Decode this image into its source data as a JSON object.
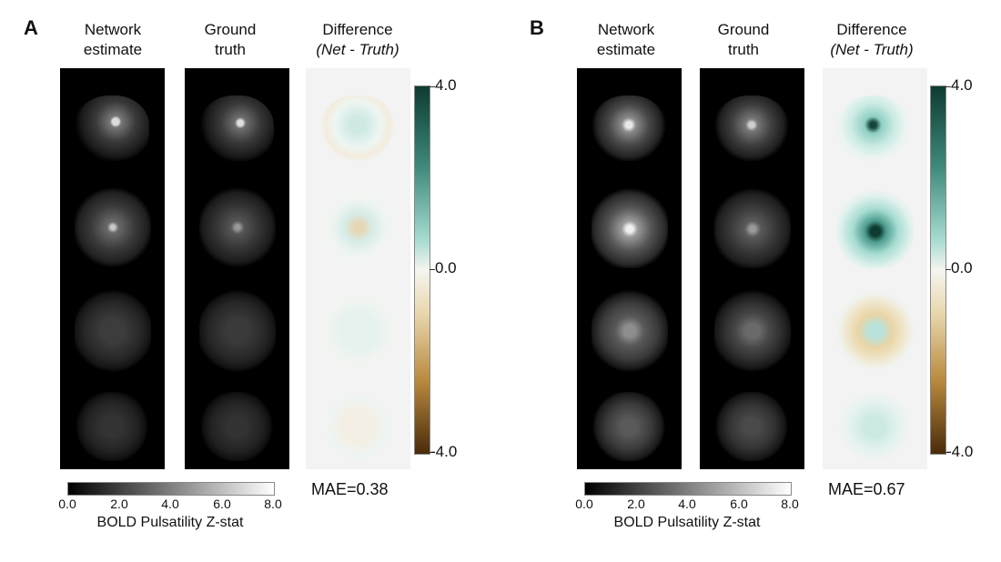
{
  "panels": [
    {
      "letter": "A",
      "col_titles": [
        {
          "line1": "Network",
          "line2": "estimate"
        },
        {
          "line1": "Ground",
          "line2": "truth"
        },
        {
          "line1": "Difference",
          "line2": "(Net - Truth)"
        }
      ],
      "diff_scale": {
        "max": "4.0",
        "mid": "0.0",
        "min": "-4.0"
      },
      "gray_scale": {
        "ticks": [
          "0.0",
          "2.0",
          "4.0",
          "6.0",
          "8.0"
        ],
        "label": "BOLD Pulsatility Z-stat"
      },
      "mae": "MAE=0.38"
    },
    {
      "letter": "B",
      "col_titles": [
        {
          "line1": "Network",
          "line2": "estimate"
        },
        {
          "line1": "Ground",
          "line2": "truth"
        },
        {
          "line1": "Difference",
          "line2": "(Net - Truth)"
        }
      ],
      "diff_scale": {
        "max": "4.0",
        "mid": "0.0",
        "min": "-4.0"
      },
      "gray_scale": {
        "ticks": [
          "0.0",
          "2.0",
          "4.0",
          "6.0",
          "8.0"
        ],
        "label": "BOLD Pulsatility Z-stat"
      },
      "mae": "MAE=0.67"
    }
  ]
}
